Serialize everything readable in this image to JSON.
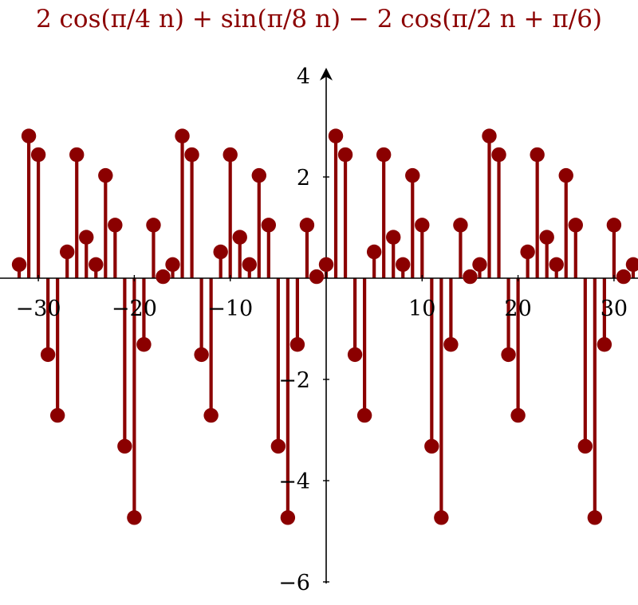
{
  "chart_data": {
    "type": "stem",
    "title": "2 cos(π/4 n) + sin(π/8 n) − 2 cos(π/2 n + π/6)",
    "xlabel": "",
    "ylabel": "",
    "xlim": [
      -32,
      32
    ],
    "ylim": [
      -6,
      4
    ],
    "xticks": [
      -30,
      -20,
      -10,
      10,
      20,
      30
    ],
    "yticks": [
      -6,
      -4,
      -2,
      2,
      4
    ],
    "xtick_labels": [
      "−30",
      "−20",
      "−10",
      "10",
      "20",
      "30"
    ],
    "ytick_labels": [
      "−6",
      "−4",
      "−2",
      "2",
      "4"
    ],
    "grid": false,
    "legend": "none",
    "color": "#8b0000",
    "series": [
      {
        "x": [
          -32,
          -31,
          -30,
          -29,
          -28,
          -27,
          -26,
          -25,
          -24,
          -23,
          -22,
          -21,
          -20,
          -19,
          -18,
          -17,
          -16,
          -15,
          -14,
          -13,
          -12,
          -11,
          -10,
          -9,
          -8,
          -7,
          -6,
          -5,
          -4,
          -3,
          -2,
          -1,
          0,
          1,
          2,
          3,
          4,
          5,
          6,
          7,
          8,
          9,
          10,
          11,
          12,
          13,
          14,
          15,
          16,
          17,
          18,
          19,
          20,
          21,
          22,
          23,
          24,
          25,
          26,
          27,
          28,
          29,
          30,
          31,
          32
        ],
        "y": [
          0.27,
          2.81,
          2.44,
          -1.51,
          -2.71,
          0.52,
          2.44,
          0.81,
          0.27,
          2.03,
          1.05,
          -3.32,
          -4.73,
          -1.31,
          1.05,
          0.03,
          0.27,
          2.81,
          2.44,
          -1.51,
          -2.71,
          0.52,
          2.44,
          0.81,
          0.27,
          2.03,
          1.05,
          -3.32,
          -4.73,
          -1.31,
          1.05,
          0.03,
          0.27,
          2.81,
          2.44,
          -1.51,
          -2.71,
          0.52,
          2.44,
          0.81,
          0.27,
          2.03,
          1.05,
          -3.32,
          -4.73,
          -1.31,
          1.05,
          0.03,
          0.27,
          2.81,
          2.44,
          -1.51,
          -2.71,
          0.52,
          2.44,
          0.81,
          0.27,
          2.03,
          1.05,
          -3.32,
          -4.73,
          -1.31,
          1.05,
          0.03,
          0.27
        ]
      }
    ]
  }
}
